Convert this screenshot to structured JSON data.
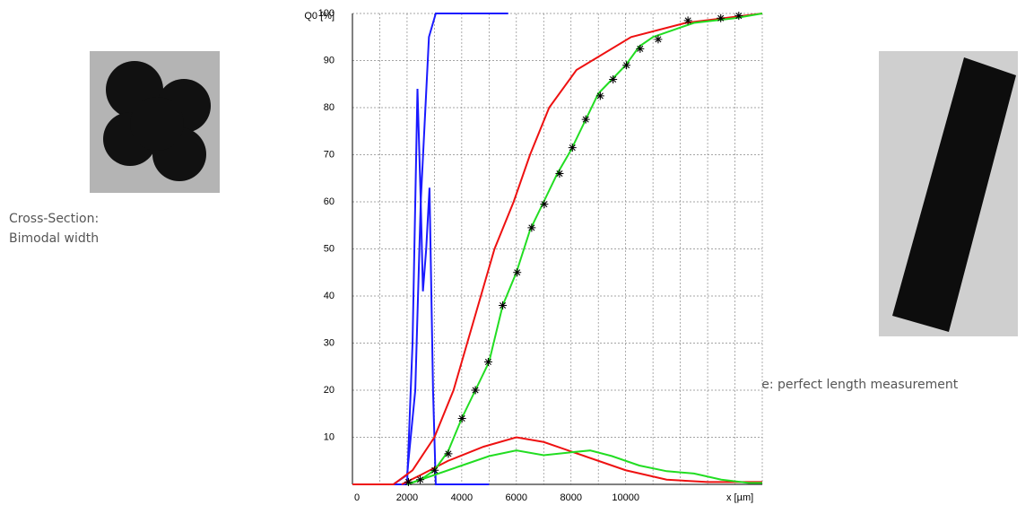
{
  "chart_data": {
    "type": "line",
    "y_label": "Q0 [%]",
    "x_label": "x [µm]",
    "xlim": [
      0,
      15000
    ],
    "ylim": [
      0,
      100
    ],
    "xticks": [
      0,
      2000,
      4000,
      6000,
      8000,
      10000
    ],
    "xgrid": [
      1000,
      3000,
      5000,
      7000,
      9000,
      11000,
      12000,
      13000,
      14000,
      15000
    ],
    "yticks": [
      10,
      20,
      30,
      40,
      50,
      60,
      70,
      80,
      90,
      100
    ],
    "grid": true,
    "series": [
      {
        "color": "#1a1aff",
        "x": [
          0,
          1500,
          2000,
          2300,
          2500,
          2800,
          3050,
          5700
        ],
        "values": [
          0,
          0,
          2,
          20,
          60,
          95,
          100,
          100
        ]
      },
      {
        "color": "#1a1aff",
        "x": [
          0,
          2000,
          2200,
          2380,
          2500,
          2580,
          2700,
          2820,
          2950,
          3050,
          5000
        ],
        "values": [
          0,
          0,
          30,
          84,
          60,
          41,
          50,
          63,
          20,
          0,
          0
        ]
      },
      {
        "color": "#ee1111",
        "x": [
          0,
          1500,
          2200,
          3000,
          3700,
          4200,
          4700,
          5200,
          5900,
          6500,
          7200,
          8200,
          10200,
          12200,
          15000
        ],
        "values": [
          0,
          0,
          3,
          10,
          20,
          30,
          40,
          50,
          60,
          70,
          80,
          88,
          95,
          98,
          100
        ]
      },
      {
        "color": "#ee1111",
        "x": [
          1800,
          2500,
          3500,
          4800,
          6000,
          7000,
          8500,
          10000,
          11500,
          13000,
          15000
        ],
        "values": [
          0,
          2,
          5,
          8,
          10,
          9,
          6,
          3,
          1,
          0.5,
          0.5
        ]
      },
      {
        "color": "#22dd22",
        "x": [
          2000,
          2500,
          3000,
          3500,
          4000,
          4500,
          5000,
          5500,
          6000,
          6500,
          7000,
          7500,
          8000,
          8500,
          9000,
          9500,
          10000,
          10500,
          11000,
          12500,
          14000,
          15000
        ],
        "values": [
          0,
          1,
          3,
          7,
          14,
          20,
          26,
          38,
          45,
          54,
          60,
          66,
          71,
          77,
          83,
          86,
          89,
          93,
          95,
          98,
          99,
          100
        ]
      },
      {
        "color": "#22dd22",
        "x": [
          2000,
          3000,
          4000,
          5000,
          6000,
          7000,
          8000,
          8700,
          9500,
          10500,
          11500,
          12500,
          13500,
          14500,
          15000
        ],
        "values": [
          0,
          2,
          4,
          6,
          7.2,
          6.2,
          6.8,
          7.2,
          6,
          4,
          2.8,
          2.3,
          1,
          0.3,
          0.3
        ]
      },
      {
        "type": "scatter",
        "marker": "star",
        "color": "#000000",
        "x": [
          2050,
          2480,
          3010,
          3510,
          4010,
          4500,
          4970,
          5500,
          6030,
          6560,
          7020,
          7580,
          8050,
          8540,
          9070,
          9540,
          10030,
          10530,
          11190,
          12280,
          13480,
          14140
        ],
        "values": [
          0.5,
          1,
          3,
          6.5,
          14,
          20,
          26,
          38,
          45,
          54.5,
          59.5,
          66,
          71.5,
          77.5,
          82.5,
          86,
          89,
          92.5,
          94.5,
          98.5,
          99,
          99.5
        ]
      }
    ]
  },
  "left_caption": {
    "line1": "Cross-Section:",
    "line2": "Bimodal width"
  },
  "right_caption": "Aligned particle: perfect length measurement"
}
